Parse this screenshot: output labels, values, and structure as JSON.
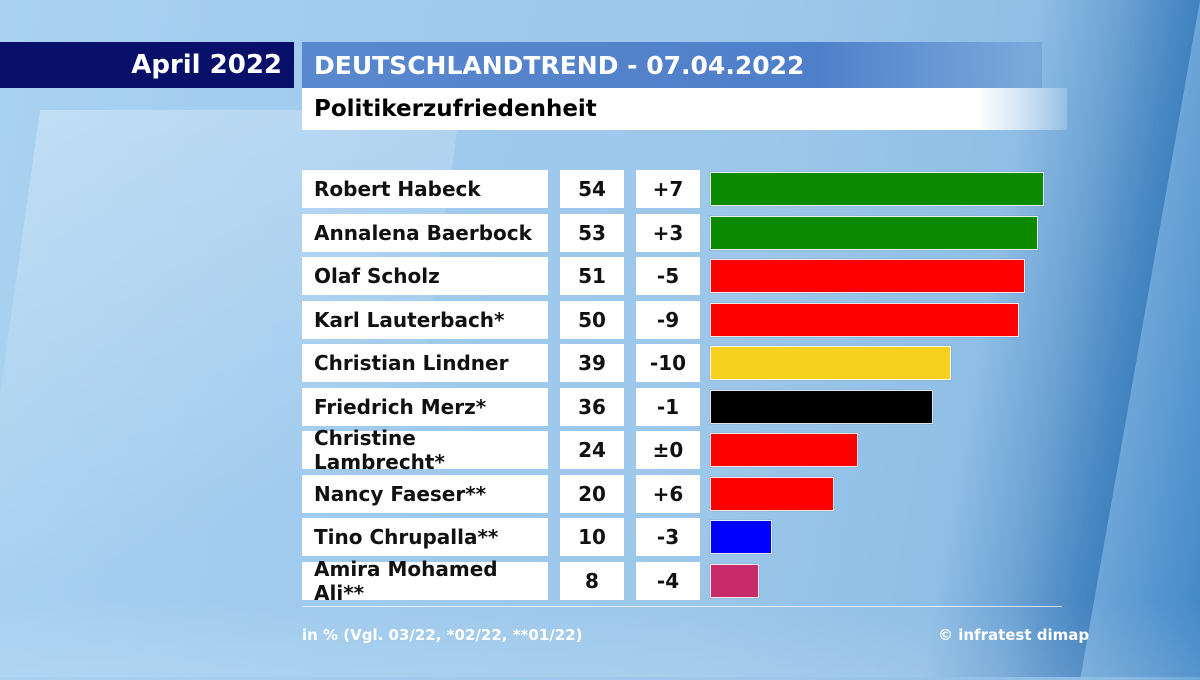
{
  "header": {
    "month_label": "April 2022",
    "title": "DEUTSCHLANDTREND - 07.04.2022",
    "subtitle": "Politikerzufriedenheit"
  },
  "chart_data": {
    "type": "bar",
    "orientation": "horizontal",
    "title": "Politikerzufriedenheit",
    "categories": [
      "Robert Habeck",
      "Annalena Baerbock",
      "Olaf Scholz",
      "Karl Lauterbach*",
      "Christian Lindner",
      "Friedrich Merz*",
      "Christine Lambrecht*",
      "Nancy Faeser**",
      "Tino Chrupalla**",
      "Amira Mohamed Ali**"
    ],
    "values": [
      54,
      53,
      51,
      50,
      39,
      36,
      24,
      20,
      10,
      8
    ],
    "changes": [
      "+7",
      "+3",
      "-5",
      "-9",
      "-10",
      "-1",
      "±0",
      "+6",
      "-3",
      "-4"
    ],
    "colors": [
      "#0b8a00",
      "#0b8a00",
      "#ff0000",
      "#ff0000",
      "#f6d21f",
      "#000000",
      "#ff0000",
      "#ff0000",
      "#0000ff",
      "#c72c68"
    ],
    "xlim": [
      0,
      55
    ],
    "grid": false,
    "legend": "none"
  },
  "footer": {
    "note": "in % (Vgl. 03/22, *02/22, **01/22)",
    "source": "© infratest dimap"
  }
}
